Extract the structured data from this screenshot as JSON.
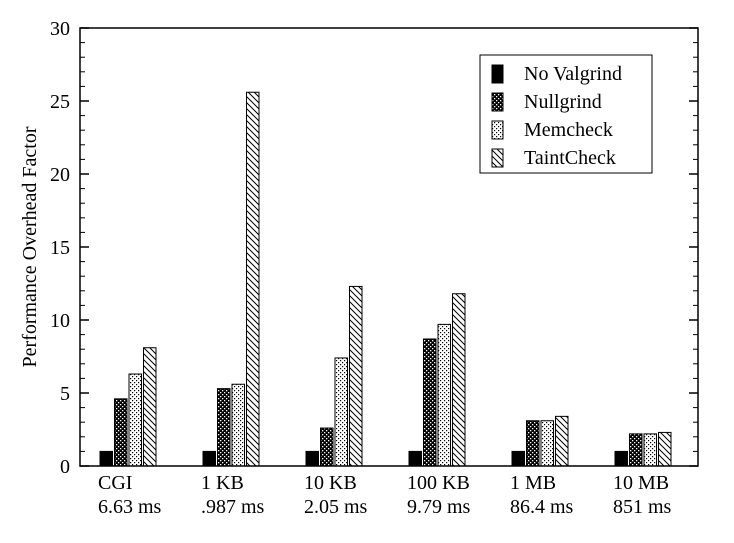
{
  "chart_data": {
    "type": "bar",
    "title": "",
    "xlabel": "",
    "ylabel": "Performance Overhead Factor",
    "ylim": [
      0,
      30
    ],
    "yticks": [
      0,
      5,
      10,
      15,
      20,
      25,
      30
    ],
    "grid": false,
    "legend_position": "top-right",
    "categories": [
      {
        "name": "CGI",
        "time": "6.63 ms"
      },
      {
        "name": "1 KB",
        "time": ".987 ms"
      },
      {
        "name": "10 KB",
        "time": "2.05 ms"
      },
      {
        "name": "100 KB",
        "time": "9.79 ms"
      },
      {
        "name": "1 MB",
        "time": "86.4 ms"
      },
      {
        "name": "10 MB",
        "time": "851 ms"
      }
    ],
    "series": [
      {
        "name": "No Valgrind",
        "pattern": "solid",
        "values": [
          1,
          1,
          1,
          1,
          1,
          1
        ]
      },
      {
        "name": "Nullgrind",
        "pattern": "crosshatch",
        "values": [
          4.6,
          5.3,
          2.6,
          8.7,
          3.1,
          2.2
        ]
      },
      {
        "name": "Memcheck",
        "pattern": "dots",
        "values": [
          6.3,
          5.6,
          7.4,
          9.7,
          3.1,
          2.2
        ]
      },
      {
        "name": "TaintCheck",
        "pattern": "diagonal",
        "values": [
          8.1,
          25.6,
          12.3,
          11.8,
          3.4,
          2.3
        ]
      }
    ]
  }
}
